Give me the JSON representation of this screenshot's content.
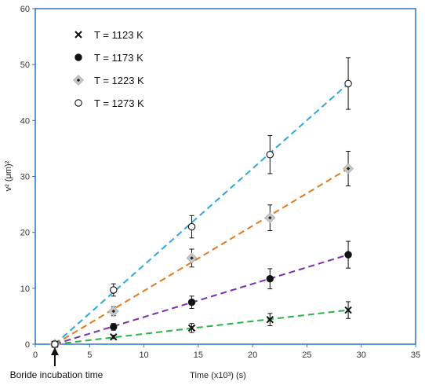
{
  "chart_data": {
    "type": "scatter",
    "title": "",
    "xlabel": "Time (x10³)  (s)",
    "ylabel": "v² (μm)²",
    "xlim": [
      0,
      35
    ],
    "ylim": [
      0,
      60
    ],
    "xticks": [
      0,
      5,
      10,
      15,
      20,
      25,
      30,
      35
    ],
    "yticks": [
      0,
      10,
      20,
      30,
      40,
      50,
      60
    ],
    "grid": false,
    "legend_position": "top-left",
    "annotation": "Boride incubation time",
    "incubation_time": 1.8,
    "series": [
      {
        "name": "T = 1123 K",
        "marker": "cross",
        "marker_color": "#111111",
        "fit_color": "#2db14a",
        "points": [
          {
            "x": 1.8,
            "y": 0,
            "err": 0
          },
          {
            "x": 7.2,
            "y": 1.3,
            "err": 0.3
          },
          {
            "x": 14.4,
            "y": 2.9,
            "err": 0.8
          },
          {
            "x": 21.6,
            "y": 4.4,
            "err": 1.1
          },
          {
            "x": 28.8,
            "y": 6.1,
            "err": 1.5
          }
        ]
      },
      {
        "name": "T = 1173 K",
        "marker": "filled-circle",
        "marker_color": "#111111",
        "fit_color": "#7a2fa8",
        "points": [
          {
            "x": 1.8,
            "y": 0,
            "err": 0
          },
          {
            "x": 7.2,
            "y": 3.1,
            "err": 0.6
          },
          {
            "x": 14.4,
            "y": 7.5,
            "err": 1.1
          },
          {
            "x": 21.6,
            "y": 11.7,
            "err": 1.8
          },
          {
            "x": 28.8,
            "y": 16.0,
            "err": 2.4
          }
        ]
      },
      {
        "name": "T = 1223 K",
        "marker": "diamond",
        "marker_color": "#aaaaaa",
        "fit_color": "#e07a1f",
        "points": [
          {
            "x": 1.8,
            "y": 0,
            "err": 0
          },
          {
            "x": 7.2,
            "y": 5.9,
            "err": 0.8
          },
          {
            "x": 14.4,
            "y": 15.4,
            "err": 1.6
          },
          {
            "x": 21.6,
            "y": 22.6,
            "err": 2.3
          },
          {
            "x": 28.8,
            "y": 31.4,
            "err": 3.1
          }
        ]
      },
      {
        "name": "T = 1273 K",
        "marker": "open-circle",
        "marker_color": "#111111",
        "fit_color": "#2aa9d8",
        "points": [
          {
            "x": 1.8,
            "y": 0,
            "err": 0
          },
          {
            "x": 7.2,
            "y": 9.7,
            "err": 1.1
          },
          {
            "x": 14.4,
            "y": 21.0,
            "err": 2.0
          },
          {
            "x": 21.6,
            "y": 33.9,
            "err": 3.4
          },
          {
            "x": 28.8,
            "y": 46.6,
            "err": 4.6
          }
        ]
      }
    ]
  }
}
